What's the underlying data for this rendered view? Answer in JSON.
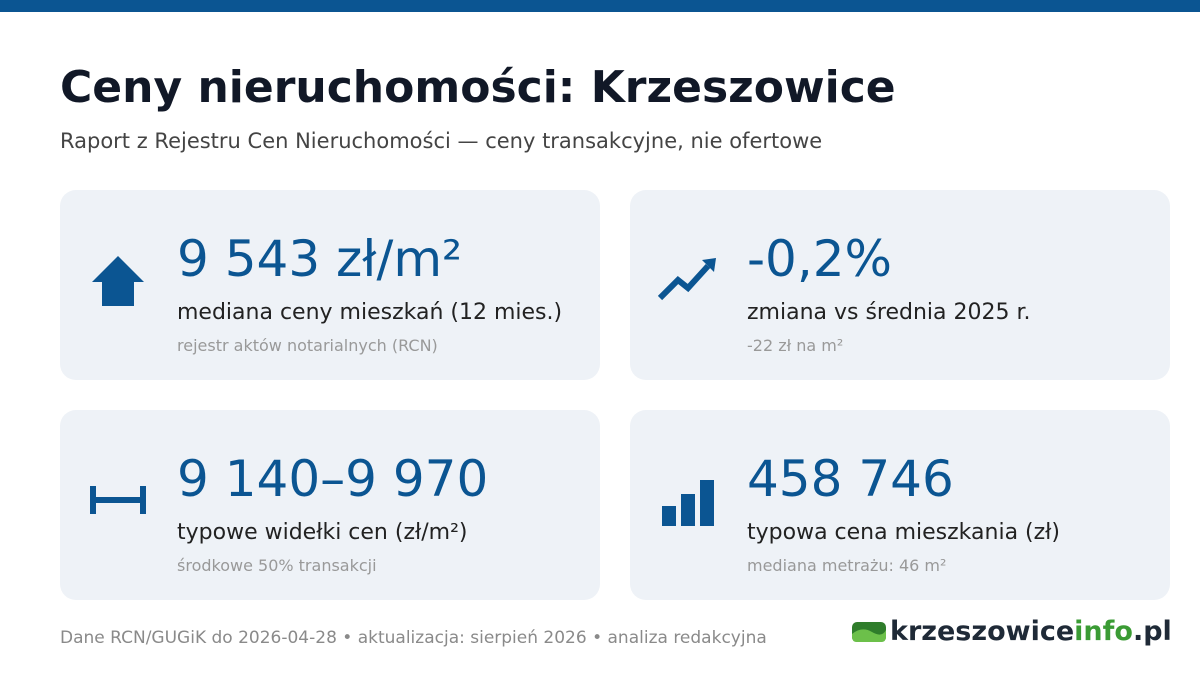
{
  "header": {
    "title": "Ceny nieruchomości: Krzeszowice",
    "subtitle": "Raport z Rejestru Cen Nieruchomości — ceny transakcyjne, nie ofertowe"
  },
  "cards": [
    {
      "value": "9 543 zł/m²",
      "label": "mediana ceny mieszkań (12 mies.)",
      "note": "rejestr aktów notarialnych (RCN)"
    },
    {
      "value": "-0,2%",
      "label": "zmiana vs średnia 2025 r.",
      "note": "-22 zł na m²"
    },
    {
      "value": "9 140–9 970",
      "label": "typowe widełki cen (zł/m²)",
      "note": "środkowe 50% transakcji"
    },
    {
      "value": "458 746",
      "label": "typowa cena mieszkania (zł)",
      "note": "mediana metrażu: 46 m²"
    }
  ],
  "footer": {
    "text": "Dane RCN/GUGiK do 2026-04-28 • aktualizacja: sierpień 2026 • analiza redakcyjna",
    "logo": {
      "main": "krzeszowice",
      "accent": "info",
      "suffix": ".pl"
    }
  }
}
